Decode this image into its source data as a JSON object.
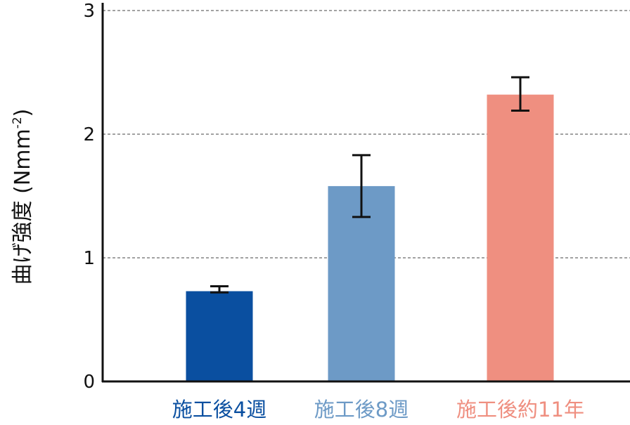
{
  "chart_data": {
    "type": "bar",
    "title": "",
    "xlabel": "",
    "ylabel": {
      "text": "曲げ強度 (Nmm",
      "superscript": "-2",
      "suffix": ")"
    },
    "ylim": [
      0,
      3
    ],
    "yticks": [
      "0",
      "1",
      "2",
      "3"
    ],
    "grid": "horizontal-dashed",
    "categories": [
      "施工後4週",
      "施工後8週",
      "施工後約11年"
    ],
    "values": [
      0.73,
      1.58,
      2.32
    ],
    "error_low": [
      0.72,
      1.33,
      2.19
    ],
    "error_high": [
      0.77,
      1.83,
      2.46
    ],
    "colors": [
      "#0a4fa0",
      "#6d9ac6",
      "#ef8f80"
    ]
  }
}
